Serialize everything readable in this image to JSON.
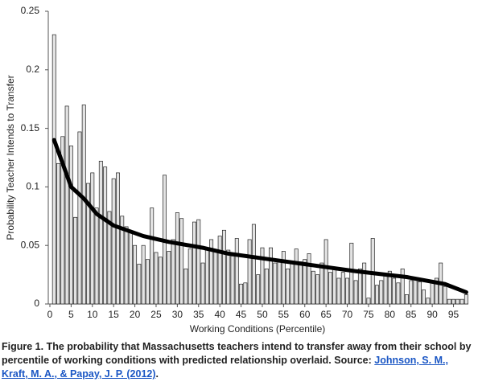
{
  "chart_data": {
    "type": "bar_line",
    "xlabel": "Working Conditions (Percentile)",
    "ylabel": "Probability Teacher Intends to Transfer",
    "xlim": [
      0,
      98.5
    ],
    "ylim": [
      0,
      0.25
    ],
    "xticks": [
      0,
      5,
      10,
      15,
      20,
      25,
      30,
      35,
      40,
      45,
      50,
      55,
      60,
      65,
      70,
      75,
      80,
      85,
      90,
      95
    ],
    "yticks": [
      0,
      0.05,
      0.1,
      0.15,
      0.2,
      0.25
    ],
    "series": [
      {
        "kind": "bar",
        "color": "#e3e3e3",
        "x": [
          1,
          2,
          3,
          4,
          5,
          6,
          7,
          8,
          9,
          10,
          11,
          12,
          13,
          14,
          15,
          16,
          17,
          18,
          19,
          20,
          21,
          22,
          23,
          24,
          25,
          26,
          27,
          28,
          29,
          30,
          31,
          32,
          33,
          34,
          35,
          36,
          37,
          38,
          39,
          40,
          41,
          42,
          43,
          44,
          45,
          46,
          47,
          48,
          49,
          50,
          51,
          52,
          53,
          54,
          55,
          56,
          57,
          58,
          59,
          60,
          61,
          62,
          63,
          64,
          65,
          66,
          67,
          68,
          69,
          70,
          71,
          72,
          73,
          74,
          75,
          76,
          77,
          78,
          79,
          80,
          81,
          82,
          83,
          84,
          85,
          86,
          87,
          88,
          89,
          90,
          91,
          92,
          93,
          94,
          95,
          96,
          97,
          98
        ],
        "values": [
          0.23,
          0.12,
          0.143,
          0.169,
          0.135,
          0.074,
          0.147,
          0.17,
          0.103,
          0.112,
          0.082,
          0.122,
          0.117,
          0.079,
          0.107,
          0.112,
          0.075,
          0.066,
          0.062,
          0.05,
          0.034,
          0.05,
          0.038,
          0.082,
          0.044,
          0.04,
          0.11,
          0.045,
          0.055,
          0.078,
          0.073,
          0.03,
          0.047,
          0.07,
          0.072,
          0.035,
          0.048,
          0.055,
          0.045,
          0.058,
          0.063,
          0.046,
          0.041,
          0.056,
          0.017,
          0.018,
          0.055,
          0.068,
          0.025,
          0.048,
          0.03,
          0.048,
          0.035,
          0.038,
          0.045,
          0.03,
          0.035,
          0.047,
          0.036,
          0.038,
          0.043,
          0.028,
          0.025,
          0.035,
          0.055,
          0.027,
          0.03,
          0.022,
          0.027,
          0.022,
          0.052,
          0.02,
          0.03,
          0.035,
          0.005,
          0.056,
          0.016,
          0.02,
          0.025,
          0.028,
          0.022,
          0.018,
          0.03,
          0.008,
          0.02,
          0.022,
          0.019,
          0.012,
          0.005,
          0.02,
          0.022,
          0.035,
          0.015,
          0.004,
          0.004,
          0.004,
          0.004,
          0.008
        ]
      },
      {
        "kind": "line",
        "color": "#000000",
        "x": [
          1,
          3,
          5,
          8,
          11,
          15,
          22,
          28,
          36,
          42,
          52,
          62,
          72,
          84,
          93,
          98
        ],
        "values": [
          0.14,
          0.12,
          0.1,
          0.09,
          0.077,
          0.067,
          0.058,
          0.053,
          0.048,
          0.043,
          0.038,
          0.033,
          0.028,
          0.023,
          0.017,
          0.01
        ]
      }
    ]
  },
  "caption": {
    "text": "Figure 1. The probability that Massachusetts teachers intend to transfer away from their school by percentile of working conditions with predicted relationship overlaid. Source: ",
    "link": "Johnson, S. M., Kraft, M. A., & Papay, J. P. (2012)",
    "end": "."
  }
}
